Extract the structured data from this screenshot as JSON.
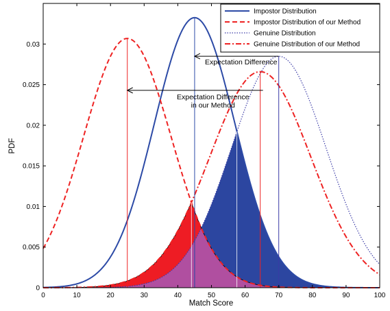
{
  "chart_data": {
    "type": "line",
    "xlabel": "Match Score",
    "ylabel": "PDF",
    "xlim": [
      0,
      100
    ],
    "ylim": [
      0,
      0.035
    ],
    "xticks": [
      "0",
      "10",
      "20",
      "30",
      "40",
      "50",
      "60",
      "70",
      "80",
      "90",
      "100"
    ],
    "yticks": [
      "0",
      "0.005",
      "0.01",
      "0.015",
      "0.02",
      "0.025",
      "0.03"
    ],
    "legend_position": "top-right",
    "series": [
      {
        "name": "Impostor Distribution",
        "mean": 45,
        "std": 12,
        "color": "#2c4aa6",
        "dash": "solid"
      },
      {
        "name": "Impostor Distribution of our Method",
        "mean": 25,
        "std": 13,
        "color": "#ee2222",
        "dash": "dashed"
      },
      {
        "name": "Genuine Distribution",
        "mean": 70,
        "std": 14,
        "color": "#3a3aa6",
        "dash": "dotted"
      },
      {
        "name": "Genuine Distribution of our Method",
        "mean": 64.5,
        "std": 15,
        "color": "#ee2222",
        "dash": "dashdot"
      }
    ],
    "annotations": {
      "original_gap": {
        "lines": [
          "Expectation Difference"
        ],
        "from": 70,
        "to": 45,
        "y": 0.0285
      },
      "method_gap": {
        "lines": [
          "Expectation Difference",
          "in our Method"
        ],
        "from": 64.5,
        "to": 25,
        "y": 0.0243
      }
    },
    "shaded_overlaps": {
      "original": {
        "color": "#2c46a0"
      },
      "method": {
        "color": "#ee1c24"
      },
      "common": {
        "color": "#b04fa0"
      }
    }
  }
}
